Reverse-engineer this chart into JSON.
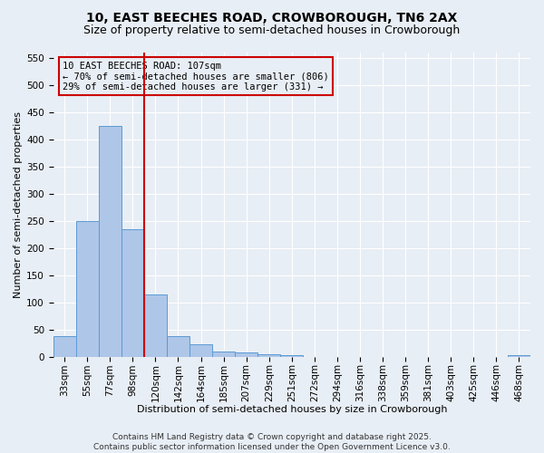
{
  "title1": "10, EAST BEECHES ROAD, CROWBOROUGH, TN6 2AX",
  "title2": "Size of property relative to semi-detached houses in Crowborough",
  "xlabel": "Distribution of semi-detached houses by size in Crowborough",
  "ylabel": "Number of semi-detached properties",
  "bins": [
    "33sqm",
    "55sqm",
    "77sqm",
    "98sqm",
    "120sqm",
    "142sqm",
    "164sqm",
    "185sqm",
    "207sqm",
    "229sqm",
    "251sqm",
    "272sqm",
    "294sqm",
    "316sqm",
    "338sqm",
    "359sqm",
    "381sqm",
    "403sqm",
    "425sqm",
    "446sqm",
    "468sqm"
  ],
  "values": [
    37,
    250,
    425,
    235,
    115,
    38,
    22,
    10,
    8,
    5,
    2,
    0,
    0,
    0,
    0,
    0,
    0,
    0,
    0,
    0,
    3
  ],
  "bar_color": "#aec6e8",
  "bar_edge_color": "#5b9bd5",
  "vline_x": 3.5,
  "vline_color": "#cc0000",
  "annotation_text": "10 EAST BEECHES ROAD: 107sqm\n← 70% of semi-detached houses are smaller (806)\n29% of semi-detached houses are larger (331) →",
  "annotation_box_color": "#cc0000",
  "background_color": "#e8eef5",
  "ylim": [
    0,
    560
  ],
  "yticks": [
    0,
    50,
    100,
    150,
    200,
    250,
    300,
    350,
    400,
    450,
    500,
    550
  ],
  "footer": "Contains HM Land Registry data © Crown copyright and database right 2025.\nContains public sector information licensed under the Open Government Licence v3.0.",
  "title_fontsize": 10,
  "subtitle_fontsize": 9,
  "axis_label_fontsize": 8,
  "tick_fontsize": 7.5,
  "footer_fontsize": 6.5,
  "annot_fontsize": 7.5
}
